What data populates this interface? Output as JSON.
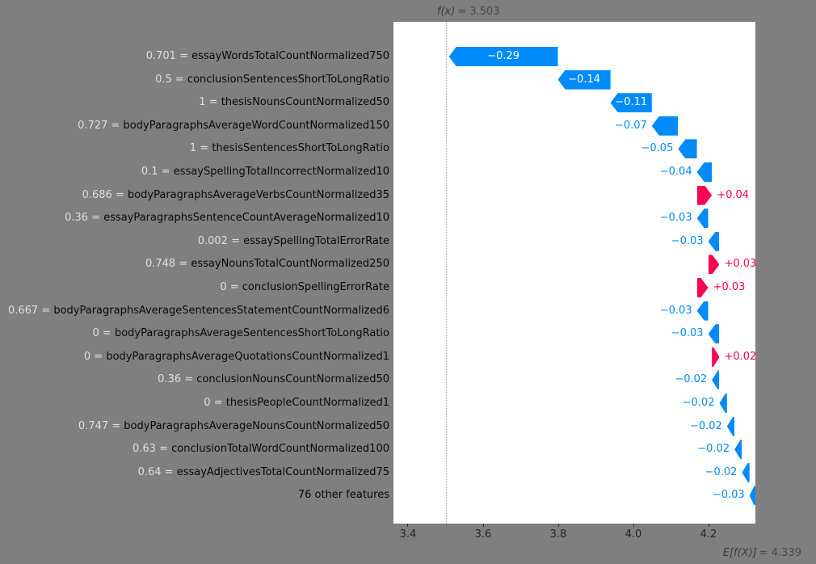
{
  "page": {
    "background": "#7f7f7f",
    "plot_background": "#ffffff"
  },
  "annotations": {
    "fx_symbol": "f(x)",
    "fx_equals": "= 3.503",
    "ef_symbol": "E[f(X)]",
    "ef_equals": "= 4.339"
  },
  "chart_data": {
    "type": "bar",
    "subtype": "shap-waterfall",
    "title": "",
    "xlabel": "",
    "ylabel": "",
    "fx_value": 3.503,
    "ef_value": 4.339,
    "xlim": [
      3.3613,
      4.3247
    ],
    "x_ticks": [
      3.4,
      3.6,
      3.8,
      4.0,
      4.2
    ],
    "x_tick_labels": [
      "3.4",
      "3.6",
      "3.8",
      "4.0",
      "4.2"
    ],
    "legend": "none",
    "grid": false,
    "colors": {
      "positive": "#ff0051",
      "negative": "#008bfb",
      "inside_text": "#ffffff"
    },
    "features": [
      {
        "value": "0.701",
        "name": "essayWordsTotalCountNormalized750",
        "shap": -0.29,
        "label": "−0.29"
      },
      {
        "value": "0.5",
        "name": "conclusionSentencesShortToLongRatio",
        "shap": -0.14,
        "label": "−0.14"
      },
      {
        "value": "1",
        "name": "thesisNounsCountNormalized50",
        "shap": -0.11,
        "label": "−0.11"
      },
      {
        "value": "0.727",
        "name": "bodyParagraphsAverageWordCountNormalized150",
        "shap": -0.07,
        "label": "−0.07"
      },
      {
        "value": "1",
        "name": "thesisSentencesShortToLongRatio",
        "shap": -0.05,
        "label": "−0.05"
      },
      {
        "value": "0.1",
        "name": "essaySpellingTotalIncorrectNormalized10",
        "shap": -0.04,
        "label": "−0.04"
      },
      {
        "value": "0.686",
        "name": "bodyParagraphsAverageVerbsCountNormalized35",
        "shap": 0.04,
        "label": "+0.04"
      },
      {
        "value": "0.36",
        "name": "essayParagraphsSentenceCountAverageNormalized10",
        "shap": -0.03,
        "label": "−0.03"
      },
      {
        "value": "0.002",
        "name": "essaySpellingTotalErrorRate",
        "shap": -0.03,
        "label": "−0.03"
      },
      {
        "value": "0.748",
        "name": "essayNounsTotalCountNormalized250",
        "shap": 0.03,
        "label": "+0.03"
      },
      {
        "value": "0",
        "name": "conclusionSpellingErrorRate",
        "shap": 0.03,
        "label": "+0.03"
      },
      {
        "value": "0.667",
        "name": "bodyParagraphsAverageSentencesStatementCountNormalized6",
        "shap": -0.03,
        "label": "−0.03"
      },
      {
        "value": "0",
        "name": "bodyParagraphsAverageSentencesShortToLongRatio",
        "shap": -0.03,
        "label": "−0.03"
      },
      {
        "value": "0",
        "name": "bodyParagraphsAverageQuotationsCountNormalized1",
        "shap": 0.02,
        "label": "+0.02"
      },
      {
        "value": "0.36",
        "name": "conclusionNounsCountNormalized50",
        "shap": -0.02,
        "label": "−0.02"
      },
      {
        "value": "0",
        "name": "thesisPeopleCountNormalized1",
        "shap": -0.02,
        "label": "−0.02"
      },
      {
        "value": "0.747",
        "name": "bodyParagraphsAverageNounsCountNormalized50",
        "shap": -0.02,
        "label": "−0.02"
      },
      {
        "value": "0.63",
        "name": "conclusionTotalWordCountNormalized100",
        "shap": -0.02,
        "label": "−0.02"
      },
      {
        "value": "0.64",
        "name": "essayAdjectivesTotalCountNormalized75",
        "shap": -0.02,
        "label": "−0.02"
      },
      {
        "value": null,
        "name": "76 other features",
        "shap": -0.03,
        "label": "−0.03"
      }
    ]
  }
}
